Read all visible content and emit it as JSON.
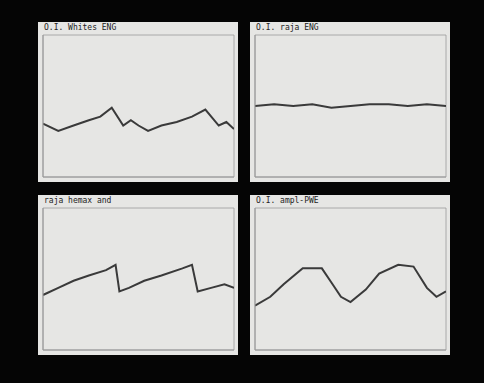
{
  "chart_data": [
    {
      "type": "line",
      "title": "O.I. Whites ENG",
      "x": [
        0,
        0.8,
        1.6,
        2.4,
        3.0,
        3.6,
        4.2,
        4.6,
        5.0,
        5.5,
        6.2,
        7.0,
        7.8,
        8.5,
        9.2,
        9.6,
        10
      ],
      "values": [
        3.0,
        2.6,
        2.9,
        3.2,
        3.4,
        3.9,
        2.9,
        3.2,
        2.9,
        2.6,
        2.9,
        3.1,
        3.4,
        3.8,
        2.9,
        3.1,
        2.7
      ],
      "color": "#3a3a3a",
      "xlim": [
        0,
        10
      ],
      "ylim": [
        0,
        8
      ],
      "xticks": [
        0,
        1,
        2,
        3,
        4,
        5,
        6,
        7,
        8,
        9,
        10
      ],
      "yticks": [
        0,
        1,
        2,
        3,
        4,
        5,
        6,
        7,
        8
      ],
      "grid": true,
      "tick_labels": false
    },
    {
      "type": "line",
      "title": "O.I. raja ENG",
      "x": [
        0,
        1,
        2,
        3,
        4,
        5,
        6,
        7,
        8,
        9,
        10
      ],
      "values": [
        4.0,
        4.1,
        4.0,
        4.1,
        3.9,
        4.0,
        4.1,
        4.1,
        4.0,
        4.1,
        4.0
      ],
      "color": "#3a3a3a",
      "xlim": [
        0,
        10
      ],
      "ylim": [
        0,
        8
      ],
      "xticks": [
        0,
        1,
        2,
        3,
        4,
        5,
        6,
        7,
        8,
        9,
        10
      ],
      "yticks": [
        0,
        1,
        2,
        3,
        4,
        5,
        6,
        7,
        8
      ],
      "grid": true,
      "tick_labels": false
    },
    {
      "type": "line",
      "title": "raja hemax and",
      "x": [
        0,
        0.8,
        1.6,
        2.4,
        3.3,
        3.8,
        4.0,
        4.5,
        5.3,
        6.2,
        7.3,
        7.8,
        8.1,
        8.8,
        9.5,
        10
      ],
      "values": [
        3.1,
        3.5,
        3.9,
        4.2,
        4.5,
        4.8,
        3.3,
        3.5,
        3.9,
        4.2,
        4.6,
        4.8,
        3.3,
        3.5,
        3.7,
        3.5
      ],
      "color": "#3a3a3a",
      "xlim": [
        0,
        10
      ],
      "ylim": [
        0,
        8
      ],
      "xticks": [
        0,
        1,
        2,
        3,
        4,
        5,
        6,
        7,
        8,
        9,
        10
      ],
      "yticks": [
        0,
        1,
        2,
        3,
        4,
        5,
        6,
        7,
        8
      ],
      "grid": true,
      "tick_labels": false
    },
    {
      "type": "line",
      "title": "O.I. ampl-PWE",
      "x": [
        0,
        0.8,
        1.5,
        2.5,
        3.5,
        4.0,
        4.5,
        5.0,
        5.8,
        6.5,
        7.5,
        8.3,
        9.0,
        9.5,
        10
      ],
      "values": [
        2.5,
        3.0,
        3.7,
        4.6,
        4.6,
        3.8,
        3.0,
        2.7,
        3.4,
        4.3,
        4.8,
        4.7,
        3.5,
        3.0,
        3.3
      ],
      "color": "#3a3a3a",
      "xlim": [
        0,
        10
      ],
      "ylim": [
        0,
        8
      ],
      "xticks": [
        0,
        1,
        2,
        3,
        4,
        5,
        6,
        7,
        8,
        9,
        10
      ],
      "yticks": [
        0,
        1,
        2,
        3,
        4,
        5,
        6,
        7,
        8
      ],
      "grid": true,
      "tick_labels": false
    }
  ]
}
